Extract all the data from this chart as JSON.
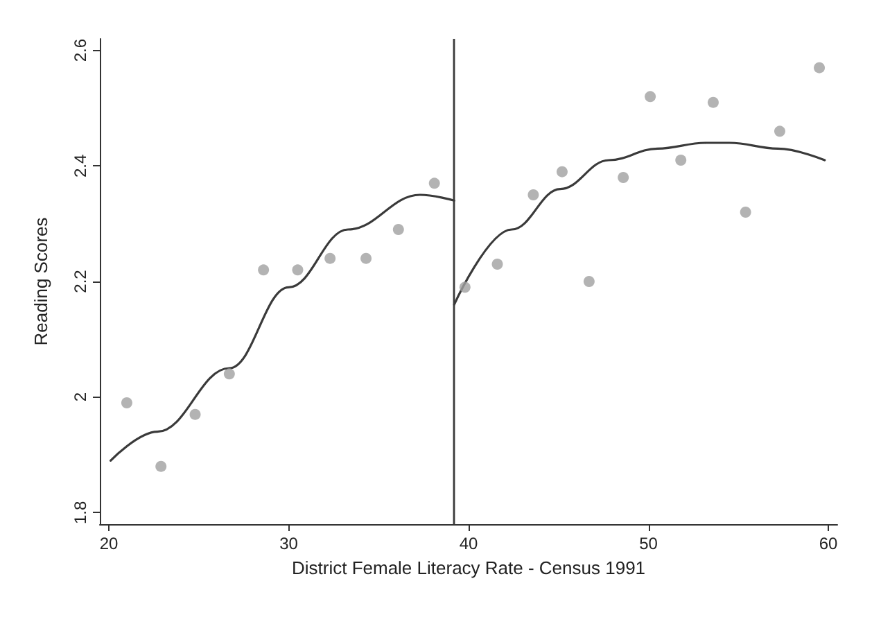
{
  "chart_data": {
    "type": "scatter",
    "xlabel": "District Female Literacy Rate - Census 1991",
    "ylabel": "Reading Scores",
    "xlim": [
      19.5,
      60.5
    ],
    "xticks": [
      20,
      30,
      40,
      50,
      60
    ],
    "ylim": [
      1.78,
      2.62
    ],
    "yticks": [
      1.8,
      2,
      2.2,
      2.4,
      2.6
    ],
    "grid": false,
    "series": [
      {
        "marker": "circle",
        "color": "#a0a0a0",
        "x": [
          21.0,
          22.9,
          24.8,
          26.7,
          28.6,
          30.5,
          32.3,
          34.3,
          36.1,
          38.1,
          39.8,
          41.6,
          43.6,
          45.2,
          46.7,
          48.6,
          50.1,
          51.8,
          53.6,
          55.4,
          57.3,
          59.5
        ],
        "values": [
          1.99,
          1.88,
          1.97,
          2.04,
          2.22,
          2.22,
          2.24,
          2.24,
          2.29,
          2.37,
          2.19,
          2.23,
          2.35,
          2.39,
          2.2,
          2.38,
          2.52,
          2.41,
          2.51,
          2.32,
          2.46,
          2.57
        ]
      },
      {
        "type": "line",
        "marker": "none",
        "line_style": "solid",
        "color": "#3a3a3a",
        "x": [
          20.1,
          22.7,
          26.7,
          30,
          33.3,
          37.3,
          39.2
        ],
        "values": [
          1.89,
          1.94,
          2.05,
          2.19,
          2.29,
          2.35,
          2.34
        ]
      },
      {
        "type": "line",
        "marker": "none",
        "line_style": "solid",
        "color": "#3a3a3a",
        "x": [
          39.2,
          42.4,
          45.1,
          47.8,
          50.5,
          53.2,
          54.5,
          57.2,
          59.8
        ],
        "values": [
          2.16,
          2.29,
          2.36,
          2.41,
          2.43,
          2.44,
          2.44,
          2.43,
          2.41
        ]
      }
    ],
    "ref_lines": [
      {
        "axis": "x",
        "value": 39.2,
        "color": "#3a3a3a",
        "line_style": "solid"
      }
    ]
  }
}
